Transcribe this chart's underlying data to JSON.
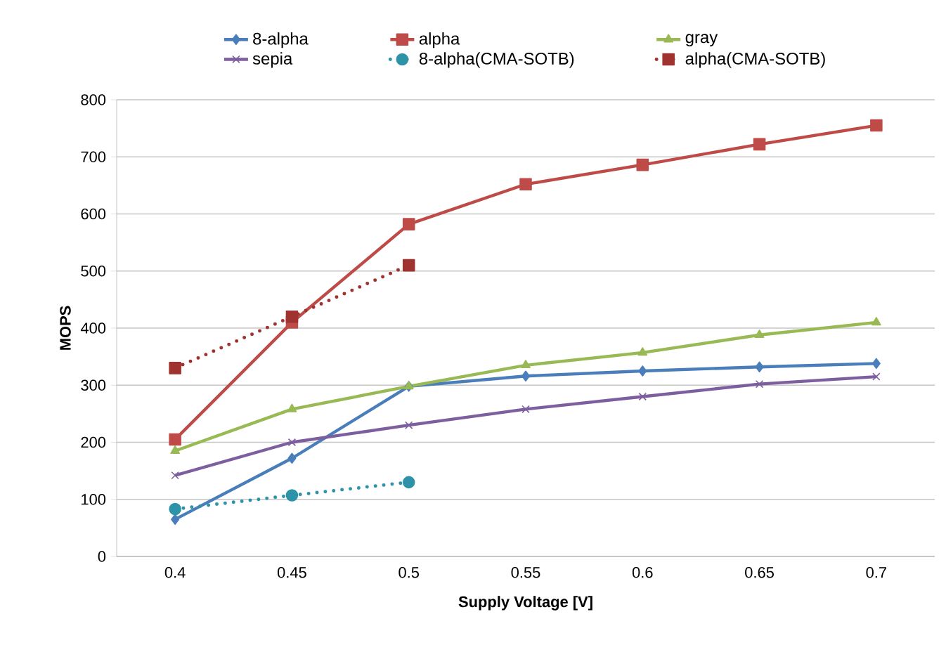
{
  "chart_data": {
    "type": "line",
    "xlabel": "Supply Voltage [V]",
    "ylabel": "MOPS",
    "categories": [
      "0.4",
      "0.45",
      "0.5",
      "0.55",
      "0.6",
      "0.65",
      "0.7"
    ],
    "ylim": [
      0,
      800
    ],
    "yticks": [
      0,
      100,
      200,
      300,
      400,
      500,
      600,
      700,
      800
    ],
    "grid": "y",
    "legend": "top",
    "series": [
      {
        "name": "8-alpha",
        "color": "#4a7ebb",
        "marker": "diamond",
        "line_style": "solid",
        "values": [
          65,
          172,
          298,
          316,
          325,
          332,
          338
        ]
      },
      {
        "name": "alpha",
        "color": "#be4b48",
        "marker": "square",
        "line_style": "solid",
        "values": [
          205,
          410,
          582,
          652,
          686,
          722,
          755
        ]
      },
      {
        "name": "gray",
        "color": "#98b954",
        "marker": "triangle",
        "line_style": "solid",
        "values": [
          185,
          258,
          298,
          335,
          357,
          388,
          410
        ]
      },
      {
        "name": "sepia",
        "color": "#7d5fa0",
        "marker": "cross",
        "line_style": "solid",
        "values": [
          142,
          200,
          230,
          258,
          280,
          302,
          315
        ]
      },
      {
        "name": "8-alpha(CMA-SOTB)",
        "color": "#2c93a8",
        "marker": "circle",
        "line_style": "dotted",
        "values": [
          83,
          107,
          130,
          null,
          null,
          null,
          null
        ]
      },
      {
        "name": "alpha(CMA-SOTB)",
        "color": "#a0322f",
        "marker": "square",
        "line_style": "dotted",
        "values": [
          330,
          420,
          510,
          null,
          null,
          null,
          null
        ]
      }
    ]
  }
}
